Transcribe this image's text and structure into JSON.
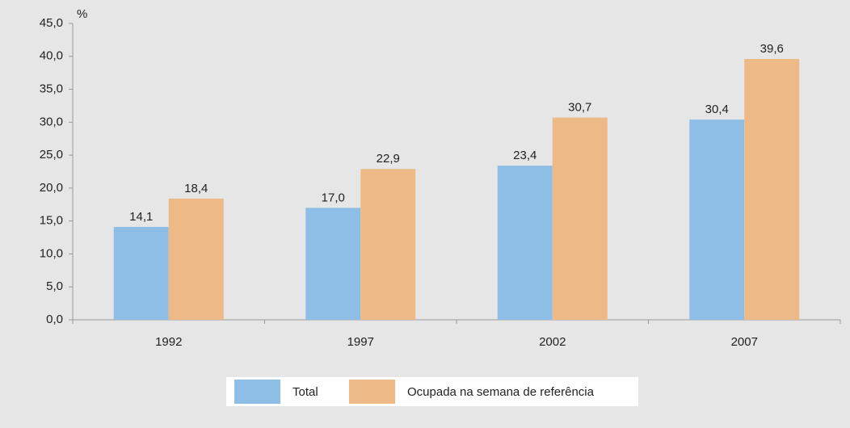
{
  "chart_data": {
    "type": "bar",
    "y_label": "%",
    "categories": [
      "1992",
      "1997",
      "2002",
      "2007"
    ],
    "series": [
      {
        "name": "Total",
        "color": "#8ebde6",
        "values": [
          14.1,
          17.0,
          23.4,
          30.4
        ],
        "value_labels": [
          "14,1",
          "17,0",
          "23,4",
          "30,4"
        ]
      },
      {
        "name": "Ocupada na semana de referência",
        "color": "#edba87",
        "values": [
          18.4,
          22.9,
          30.7,
          39.6
        ],
        "value_labels": [
          "18,4",
          "22,9",
          "30,7",
          "39,6"
        ]
      }
    ],
    "ylim": [
      0,
      45
    ],
    "yticks": [
      {
        "value": 0,
        "label": "0,0"
      },
      {
        "value": 5,
        "label": "5,0"
      },
      {
        "value": 10,
        "label": "10,0"
      },
      {
        "value": 15,
        "label": "15,0"
      },
      {
        "value": 20,
        "label": "20,0"
      },
      {
        "value": 25,
        "label": "25,0"
      },
      {
        "value": 30,
        "label": "30,0"
      },
      {
        "value": 35,
        "label": "35,0"
      },
      {
        "value": 40,
        "label": "40,0"
      },
      {
        "value": 45,
        "label": "45,0"
      }
    ],
    "grid": false,
    "legend": "bottom"
  }
}
